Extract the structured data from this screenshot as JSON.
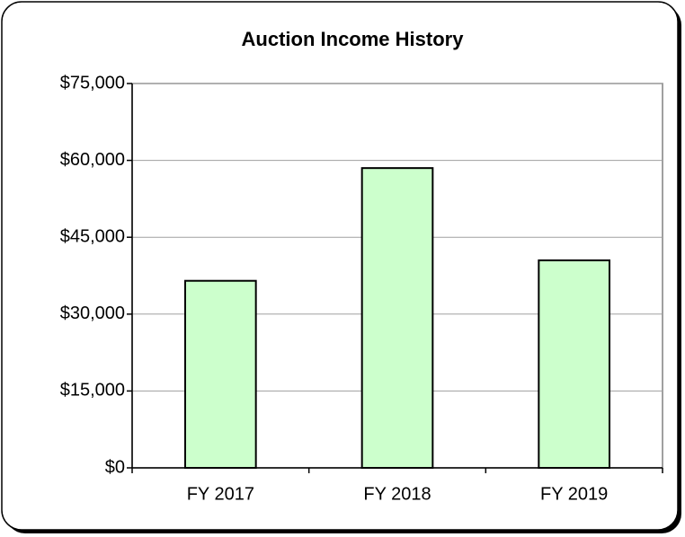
{
  "chart_data": {
    "type": "bar",
    "title": "Auction Income History",
    "categories": [
      "FY 2017",
      "FY 2018",
      "FY 2019"
    ],
    "values": [
      36500,
      58500,
      40500
    ],
    "color": "#ccffcc",
    "ylim": [
      0,
      75000
    ],
    "yticks": [
      {
        "value": 0,
        "label": "$0"
      },
      {
        "value": 15000,
        "label": "$15,000"
      },
      {
        "value": 30000,
        "label": "$30,000"
      },
      {
        "value": 45000,
        "label": "$45,000"
      },
      {
        "value": 60000,
        "label": "$60,000"
      },
      {
        "value": 75000,
        "label": "$75,000"
      }
    ],
    "grid": true
  }
}
